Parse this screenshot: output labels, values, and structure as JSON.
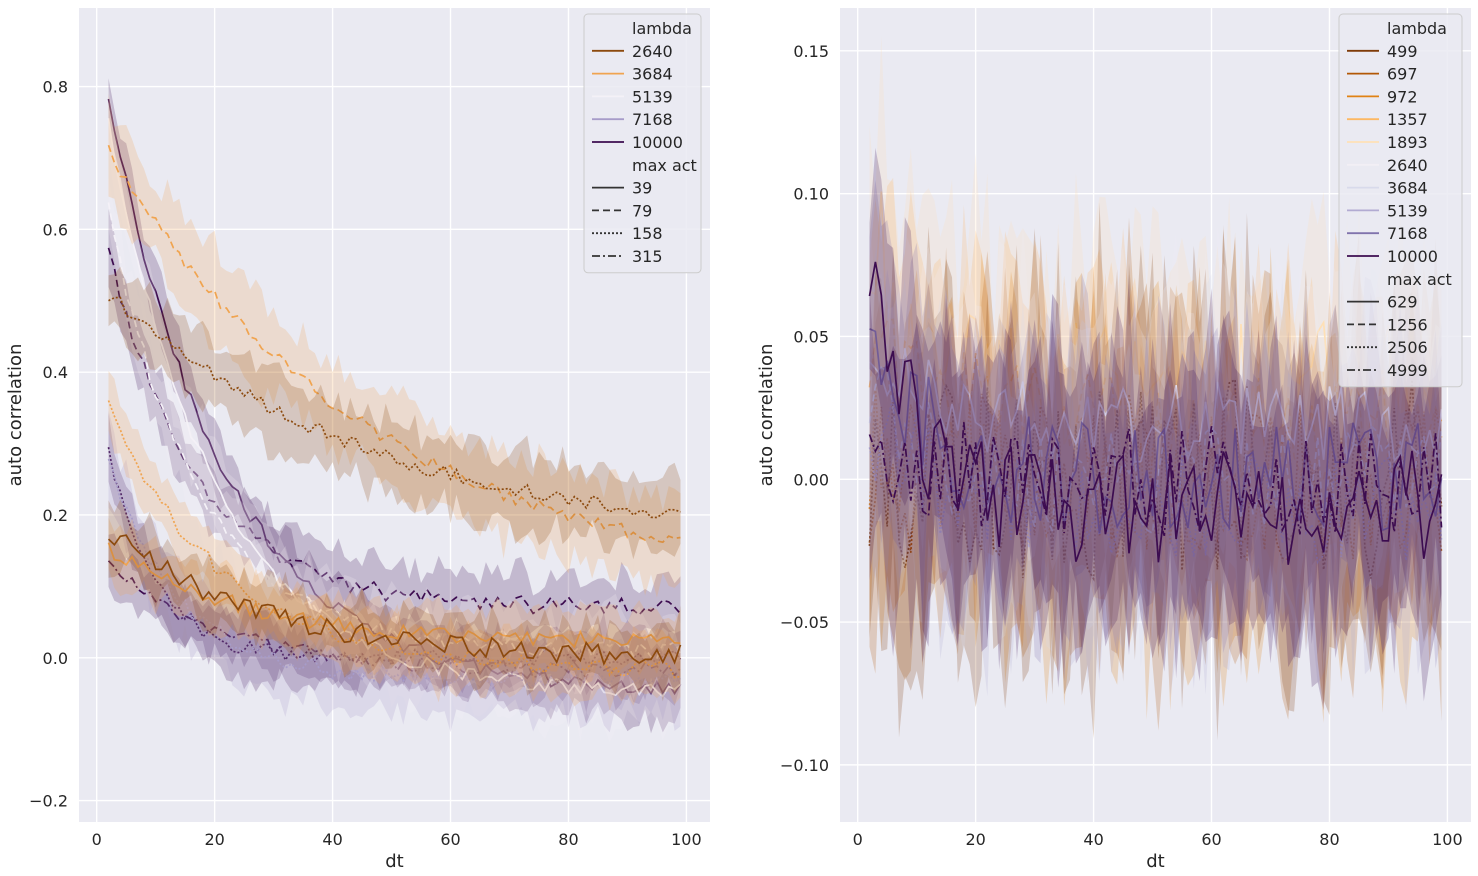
{
  "chart_data": [
    {
      "type": "line",
      "xlabel": "dt",
      "ylabel": "auto correlation",
      "xlim": [
        -3,
        104
      ],
      "ylim": [
        -0.23,
        0.91
      ],
      "xticks": [
        0,
        20,
        40,
        60,
        80,
        100
      ],
      "yticks": [
        -0.2,
        0.0,
        0.2,
        0.4,
        0.6,
        0.8
      ],
      "ytick_labels": [
        "−0.2",
        "0.0",
        "0.2",
        "0.4",
        "0.6",
        "0.8"
      ],
      "grid": true,
      "background": "#eaeaf2",
      "legend_position": "top-right",
      "legend": {
        "hue_title": "lambda",
        "hue_entries": [
          {
            "label": "2640",
            "color": "#8c4a0e"
          },
          {
            "label": "3684",
            "color": "#f0a450"
          },
          {
            "label": "5139",
            "color": "#f4f1f7"
          },
          {
            "label": "7168",
            "color": "#a79cc9"
          },
          {
            "label": "10000",
            "color": "#3d0c50"
          }
        ],
        "style_title": "max act",
        "style_entries": [
          {
            "label": "39",
            "dash": "solid"
          },
          {
            "label": "79",
            "dash": "dashed"
          },
          {
            "label": "158",
            "dash": "dotted"
          },
          {
            "label": "315",
            "dash": "dashdot"
          }
        ]
      },
      "x_range": [
        2,
        99
      ],
      "series": [
        {
          "color": "#3d0c50",
          "dash": "solid",
          "start": 0.78,
          "end": -0.05,
          "tau": 20,
          "noise": 0.01,
          "band": 0.04
        },
        {
          "color": "#3d0c50",
          "dash": "dashed",
          "start": 0.57,
          "end": 0.07,
          "tau": 15,
          "noise": 0.012,
          "band": 0.04
        },
        {
          "color": "#3d0c50",
          "dash": "dotted",
          "start": 0.29,
          "end": 0.0,
          "tau": 8,
          "noise": 0.012,
          "band": 0.04
        },
        {
          "color": "#3d0c50",
          "dash": "dashdot",
          "start": 0.13,
          "end": -0.02,
          "tau": 20,
          "noise": 0.012,
          "band": 0.035
        },
        {
          "color": "#f4f1f7",
          "dash": "solid",
          "start": 0.75,
          "end": -0.05,
          "tau": 18,
          "noise": 0.01,
          "band": 0.05
        },
        {
          "color": "#f4f1f7",
          "dash": "dashed",
          "start": 0.63,
          "end": 0.01,
          "tau": 15,
          "noise": 0.012,
          "band": 0.05
        },
        {
          "color": "#a79cc9",
          "dash": "dotted",
          "start": 0.27,
          "end": -0.03,
          "tau": 12,
          "noise": 0.012,
          "band": 0.05
        },
        {
          "color": "#f0a450",
          "dash": "dashed",
          "start": 0.71,
          "end": 0.09,
          "tau": 45,
          "noise": 0.01,
          "band": 0.06
        },
        {
          "color": "#f0a450",
          "dash": "dotted",
          "start": 0.35,
          "end": -0.02,
          "tau": 20,
          "noise": 0.012,
          "band": 0.04
        },
        {
          "color": "#f0a450",
          "dash": "solid",
          "start": 0.15,
          "end": 0.02,
          "tau": 25,
          "noise": 0.012,
          "band": 0.04
        },
        {
          "color": "#8c4a0e",
          "dash": "dotted",
          "start": 0.51,
          "end": 0.16,
          "tau": 45,
          "noise": 0.01,
          "band": 0.05
        },
        {
          "color": "#8c4a0e",
          "dash": "solid",
          "start": 0.18,
          "end": 0.0,
          "tau": 25,
          "noise": 0.015,
          "band": 0.04
        }
      ]
    },
    {
      "type": "line",
      "xlabel": "dt",
      "ylabel": "auto correlation",
      "xlim": [
        -3,
        104
      ],
      "ylim": [
        -0.12,
        0.165
      ],
      "xticks": [
        0,
        20,
        40,
        60,
        80,
        100
      ],
      "yticks": [
        -0.1,
        -0.05,
        0.0,
        0.05,
        0.1,
        0.15
      ],
      "ytick_labels": [
        "−0.10",
        "−0.05",
        "0.00",
        "0.05",
        "0.10",
        "0.15"
      ],
      "grid": true,
      "background": "#eaeaf2",
      "legend_position": "top-right",
      "legend": {
        "hue_title": "lambda",
        "hue_entries": [
          {
            "label": "499",
            "color": "#7f3b08"
          },
          {
            "label": "697",
            "color": "#b35806"
          },
          {
            "label": "972",
            "color": "#e08214"
          },
          {
            "label": "1357",
            "color": "#fdb863"
          },
          {
            "label": "1893",
            "color": "#fee0b6"
          },
          {
            "label": "2640",
            "color": "#f2eff5"
          },
          {
            "label": "3684",
            "color": "#d8daeb"
          },
          {
            "label": "5139",
            "color": "#b2abd2"
          },
          {
            "label": "7168",
            "color": "#8073ac"
          },
          {
            "label": "10000",
            "color": "#3d0c50"
          }
        ],
        "style_title": "max act",
        "style_entries": [
          {
            "label": "629",
            "dash": "solid"
          },
          {
            "label": "1256",
            "dash": "dashed"
          },
          {
            "label": "2506",
            "dash": "dotted"
          },
          {
            "label": "4999",
            "dash": "dashdot"
          }
        ]
      },
      "x_range": [
        2,
        99
      ],
      "series": [
        {
          "color": "#fee0b6",
          "dash": "solid",
          "start": 0.09,
          "end": 0.03,
          "tau": 8,
          "noise": 0.025,
          "band": 0.045
        },
        {
          "color": "#fdb863",
          "dash": "dashed",
          "start": 0.05,
          "end": 0.02,
          "tau": 10,
          "noise": 0.02,
          "band": 0.04
        },
        {
          "color": "#e08214",
          "dash": "dotted",
          "start": 0.01,
          "end": 0.0,
          "tau": 10,
          "noise": 0.025,
          "band": 0.045
        },
        {
          "color": "#b35806",
          "dash": "dotted",
          "start": 0.0,
          "end": 0.0,
          "tau": 10,
          "noise": 0.03,
          "band": 0.045
        },
        {
          "color": "#7f3b08",
          "dash": "dotted",
          "start": 0.0,
          "end": 0.0,
          "tau": 10,
          "noise": 0.035,
          "band": 0.05
        },
        {
          "color": "#f2eff5",
          "dash": "solid",
          "start": 0.05,
          "end": 0.02,
          "tau": 10,
          "noise": 0.015,
          "band": 0.04
        },
        {
          "color": "#d8daeb",
          "dash": "dashed",
          "start": 0.03,
          "end": 0.0,
          "tau": 10,
          "noise": 0.02,
          "band": 0.04
        },
        {
          "color": "#b2abd2",
          "dash": "dotted",
          "start": 0.02,
          "end": -0.01,
          "tau": 10,
          "noise": 0.02,
          "band": 0.04
        },
        {
          "color": "#8073ac",
          "dash": "solid",
          "start": 0.06,
          "end": 0.0,
          "tau": 8,
          "noise": 0.02,
          "band": 0.04
        },
        {
          "color": "#3d0c50",
          "dash": "solid",
          "start": 0.07,
          "end": -0.01,
          "tau": 8,
          "noise": 0.02,
          "band": 0.04
        },
        {
          "color": "#3d0c50",
          "dash": "dashdot",
          "start": 0.02,
          "end": 0.0,
          "tau": 8,
          "noise": 0.02,
          "band": 0.04
        }
      ]
    }
  ]
}
